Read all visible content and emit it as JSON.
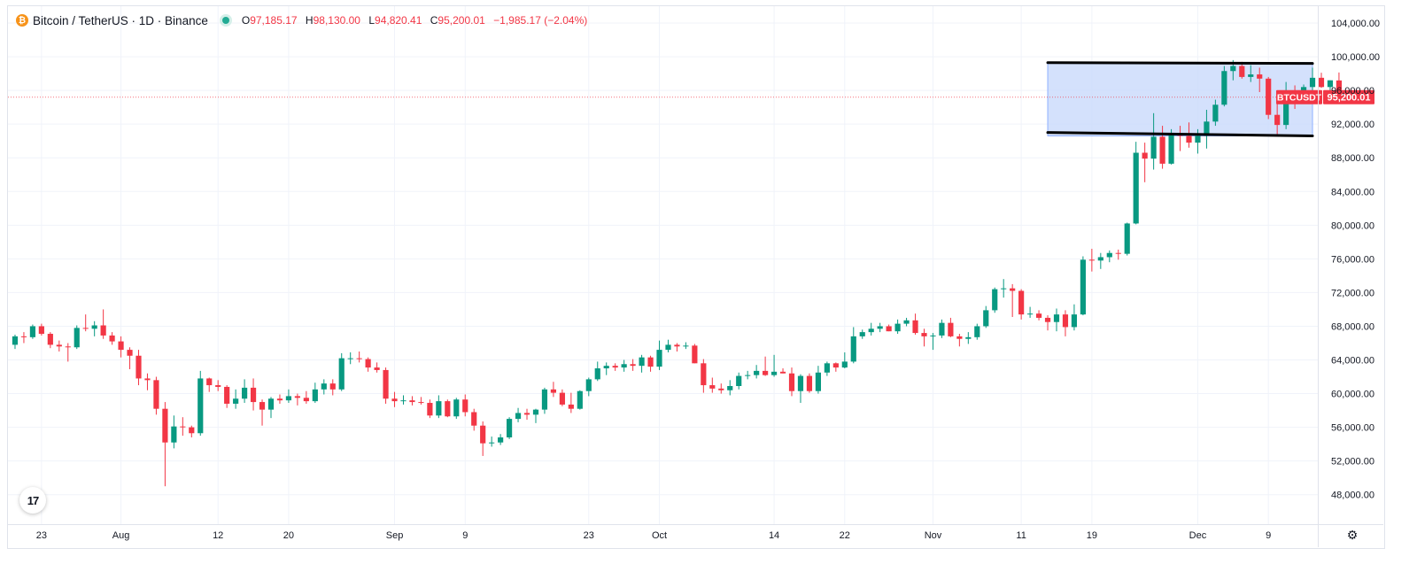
{
  "header": {
    "title": "Bitcoin / TetherUS · 1D · Binance",
    "o_label": "O",
    "o_value": "97,185.17",
    "h_label": "H",
    "h_value": "98,130.00",
    "l_label": "L",
    "l_value": "94,820.41",
    "c_label": "C",
    "c_value": "95,200.01",
    "change": "−1,985.17 (−2.04%)"
  },
  "tv_logo": "17",
  "colors": {
    "up": "#089981",
    "down": "#f23645",
    "box_fill": "#c9d9fb",
    "box_border": "#8fb0ff",
    "channel": "#000000"
  },
  "chart_data": {
    "type": "candlestick",
    "symbol_label": "BTCUSDT",
    "last_price": 95200.01,
    "last_price_label": "95,200.01",
    "ylim": [
      44500,
      106000
    ],
    "y_ticks": [
      48000,
      52000,
      56000,
      60000,
      64000,
      68000,
      72000,
      76000,
      80000,
      84000,
      88000,
      92000,
      96000,
      100000,
      104000
    ],
    "y_tick_labels": [
      "48,000.00",
      "52,000.00",
      "56,000.00",
      "60,000.00",
      "64,000.00",
      "68,000.00",
      "72,000.00",
      "76,000.00",
      "80,000.00",
      "84,000.00",
      "88,000.00",
      "92,000.00",
      "96,000.00",
      "100,000.00",
      "104,000.00"
    ],
    "x_ticks": [
      {
        "label": "23",
        "i": 3
      },
      {
        "label": "Aug",
        "i": 12
      },
      {
        "label": "12",
        "i": 23
      },
      {
        "label": "20",
        "i": 31
      },
      {
        "label": "Sep",
        "i": 43
      },
      {
        "label": "9",
        "i": 51
      },
      {
        "label": "23",
        "i": 65
      },
      {
        "label": "Oct",
        "i": 73
      },
      {
        "label": "14",
        "i": 86
      },
      {
        "label": "22",
        "i": 94
      },
      {
        "label": "Nov",
        "i": 104
      },
      {
        "label": "11",
        "i": 114
      },
      {
        "label": "19",
        "i": 122
      },
      {
        "label": "Dec",
        "i": 134
      },
      {
        "label": "9",
        "i": 142
      }
    ],
    "x_range_index": [
      -0.8,
      147.6
    ],
    "channel_upper": {
      "i0": 117,
      "v0": 99300,
      "i1": 147,
      "v1": 99200
    },
    "channel_lower": {
      "i0": 117,
      "v0": 91000,
      "i1": 147,
      "v1": 90600
    },
    "range_box": {
      "i0": 117,
      "i1": 147,
      "top": 99300,
      "bottom": 90600
    },
    "candles": [
      [
        65800,
        67000,
        65300,
        66800
      ],
      [
        66800,
        67300,
        66000,
        66700
      ],
      [
        66700,
        68200,
        66500,
        68000
      ],
      [
        68000,
        68300,
        66900,
        67100
      ],
      [
        67100,
        67300,
        65400,
        65800
      ],
      [
        65800,
        66300,
        65000,
        65600
      ],
      [
        65600,
        66000,
        63800,
        65500
      ],
      [
        65500,
        68100,
        65300,
        67800
      ],
      [
        67800,
        69400,
        67400,
        67700
      ],
      [
        67700,
        68600,
        66800,
        68100
      ],
      [
        68100,
        70000,
        66500,
        66900
      ],
      [
        66900,
        67300,
        65800,
        66200
      ],
      [
        66200,
        66800,
        64300,
        65200
      ],
      [
        65200,
        65500,
        62900,
        64500
      ],
      [
        64500,
        65200,
        61000,
        61800
      ],
      [
        61800,
        62400,
        60400,
        61600
      ],
      [
        61600,
        62000,
        57500,
        58200
      ],
      [
        58200,
        59000,
        49000,
        54200
      ],
      [
        54200,
        57400,
        53500,
        56100
      ],
      [
        56100,
        57200,
        55000,
        56000
      ],
      [
        56000,
        56200,
        54800,
        55300
      ],
      [
        55300,
        62700,
        55000,
        61800
      ],
      [
        61800,
        61900,
        60200,
        61000
      ],
      [
        61000,
        61600,
        60300,
        60800
      ],
      [
        60800,
        61000,
        58300,
        58800
      ],
      [
        58800,
        60500,
        58200,
        59400
      ],
      [
        59400,
        61700,
        58900,
        60700
      ],
      [
        60700,
        61800,
        58000,
        59000
      ],
      [
        59000,
        59300,
        56200,
        58100
      ],
      [
        58100,
        59600,
        57100,
        59400
      ],
      [
        59400,
        59900,
        58800,
        59200
      ],
      [
        59200,
        60500,
        58900,
        59700
      ],
      [
        59700,
        60000,
        58600,
        59500
      ],
      [
        59500,
        60300,
        58800,
        59100
      ],
      [
        59100,
        61300,
        58900,
        60500
      ],
      [
        60500,
        61700,
        59900,
        61200
      ],
      [
        61200,
        61700,
        59800,
        60500
      ],
      [
        60500,
        64800,
        60300,
        64200
      ],
      [
        64200,
        64900,
        63500,
        64200
      ],
      [
        64200,
        65000,
        63700,
        64100
      ],
      [
        64100,
        64300,
        62600,
        63100
      ],
      [
        63100,
        63700,
        62500,
        62800
      ],
      [
        62800,
        63100,
        58800,
        59400
      ],
      [
        59400,
        60200,
        58400,
        59100
      ],
      [
        59100,
        59800,
        58700,
        59200
      ],
      [
        59200,
        59700,
        58600,
        59000
      ],
      [
        59000,
        59600,
        58700,
        58900
      ],
      [
        58900,
        59300,
        57100,
        57400
      ],
      [
        57400,
        59800,
        57100,
        59100
      ],
      [
        59100,
        59300,
        57200,
        57300
      ],
      [
        57300,
        59500,
        57000,
        59300
      ],
      [
        59300,
        59900,
        57300,
        57800
      ],
      [
        57800,
        58200,
        55600,
        56200
      ],
      [
        56200,
        56700,
        52600,
        54100
      ],
      [
        54100,
        54900,
        53700,
        54200
      ],
      [
        54200,
        55200,
        53900,
        54800
      ],
      [
        54800,
        57200,
        54600,
        57000
      ],
      [
        57000,
        58300,
        56600,
        57700
      ],
      [
        57700,
        58200,
        56900,
        57500
      ],
      [
        57500,
        58200,
        56500,
        58100
      ],
      [
        58100,
        60700,
        57600,
        60500
      ],
      [
        60500,
        61400,
        59600,
        60100
      ],
      [
        60100,
        60500,
        58500,
        58700
      ],
      [
        58700,
        60100,
        57700,
        58200
      ],
      [
        58200,
        60400,
        58100,
        60300
      ],
      [
        60300,
        61900,
        59700,
        61700
      ],
      [
        61700,
        63800,
        61500,
        63000
      ],
      [
        63000,
        63700,
        62200,
        63300
      ],
      [
        63300,
        63600,
        62700,
        63100
      ],
      [
        63100,
        64000,
        62600,
        63500
      ],
      [
        63500,
        64100,
        62700,
        63300
      ],
      [
        63300,
        64600,
        62500,
        64300
      ],
      [
        64300,
        64500,
        62600,
        63200
      ],
      [
        63200,
        66300,
        62800,
        65200
      ],
      [
        65200,
        66400,
        64900,
        65800
      ],
      [
        65800,
        66000,
        65000,
        65600
      ],
      [
        65600,
        66100,
        65300,
        65700
      ],
      [
        65700,
        65900,
        63600,
        63600
      ],
      [
        63600,
        64100,
        60100,
        61000
      ],
      [
        61000,
        61900,
        60100,
        60600
      ],
      [
        60600,
        61200,
        60000,
        60400
      ],
      [
        60400,
        61600,
        59800,
        60900
      ],
      [
        60900,
        62500,
        60500,
        62100
      ],
      [
        62100,
        62700,
        61700,
        62200
      ],
      [
        62200,
        63400,
        61800,
        62700
      ],
      [
        62700,
        64400,
        62100,
        62200
      ],
      [
        62200,
        64600,
        62000,
        62600
      ],
      [
        62600,
        63000,
        62400,
        62400
      ],
      [
        62400,
        63100,
        59700,
        60300
      ],
      [
        60300,
        62300,
        58900,
        62100
      ],
      [
        62100,
        62400,
        60100,
        60300
      ],
      [
        60300,
        63300,
        60000,
        62500
      ],
      [
        62500,
        63800,
        62100,
        63600
      ],
      [
        63600,
        63700,
        62600,
        63100
      ],
      [
        63100,
        64900,
        63000,
        63800
      ],
      [
        63800,
        67900,
        63600,
        66800
      ],
      [
        66800,
        67600,
        66500,
        67300
      ],
      [
        67300,
        68400,
        66900,
        67700
      ],
      [
        67700,
        68400,
        67300,
        68000
      ],
      [
        68000,
        68200,
        67400,
        67400
      ],
      [
        67400,
        68800,
        67100,
        68300
      ],
      [
        68300,
        69000,
        68000,
        68700
      ],
      [
        68700,
        69500,
        67000,
        67200
      ],
      [
        67200,
        67700,
        65600,
        66800
      ],
      [
        66800,
        67200,
        65200,
        66900
      ],
      [
        66900,
        68800,
        66600,
        68400
      ],
      [
        68400,
        69000,
        66700,
        66800
      ],
      [
        66800,
        67100,
        65600,
        66500
      ],
      [
        66500,
        67300,
        65900,
        66700
      ],
      [
        66700,
        68300,
        66400,
        68000
      ],
      [
        68000,
        70400,
        67800,
        69900
      ],
      [
        69900,
        72600,
        69600,
        72400
      ],
      [
        72400,
        73600,
        71400,
        72500
      ],
      [
        72500,
        73000,
        69100,
        72200
      ],
      [
        72200,
        72400,
        68800,
        69400
      ],
      [
        69400,
        70300,
        69000,
        69500
      ],
      [
        69500,
        69900,
        68700,
        69000
      ],
      [
        69000,
        69300,
        67500,
        68500
      ],
      [
        68500,
        70100,
        67400,
        69400
      ],
      [
        69400,
        69900,
        66800,
        67900
      ],
      [
        67900,
        70600,
        67500,
        69400
      ],
      [
        69400,
        76300,
        69300,
        75900
      ],
      [
        75900,
        77200,
        74500,
        75800
      ],
      [
        75800,
        76700,
        74800,
        76200
      ],
      [
        76200,
        77000,
        75600,
        76700
      ],
      [
        76700,
        77100,
        75900,
        76600
      ],
      [
        76600,
        80300,
        76400,
        80200
      ],
      [
        80200,
        89900,
        80100,
        88600
      ],
      [
        88600,
        89800,
        85100,
        87900
      ],
      [
        87900,
        93300,
        86600,
        90500
      ],
      [
        90500,
        91800,
        86700,
        87300
      ],
      [
        87300,
        91400,
        87200,
        90900
      ],
      [
        90900,
        91800,
        88800,
        90600
      ],
      [
        90600,
        92200,
        89200,
        89800
      ],
      [
        89800,
        91400,
        88500,
        90600
      ],
      [
        90600,
        93700,
        89100,
        92300
      ],
      [
        92300,
        94900,
        91800,
        94300
      ],
      [
        94300,
        98900,
        94100,
        98300
      ],
      [
        98300,
        99600,
        97200,
        98900
      ],
      [
        98900,
        99400,
        97400,
        97600
      ],
      [
        97600,
        99000,
        97000,
        97900
      ],
      [
        97900,
        98700,
        95800,
        97400
      ],
      [
        97400,
        97600,
        92600,
        93100
      ],
      [
        93100,
        94600,
        90800,
        91900
      ],
      [
        91900,
        97000,
        91400,
        95800
      ],
      [
        95800,
        96600,
        93800,
        95700
      ],
      [
        95700,
        96700,
        95300,
        96400
      ],
      [
        96400,
        98700,
        95700,
        97500
      ],
      [
        97500,
        98100,
        96300,
        96400
      ],
      [
        96400,
        97200,
        95400,
        97200
      ],
      [
        97185,
        98130,
        94820,
        95200
      ]
    ]
  }
}
